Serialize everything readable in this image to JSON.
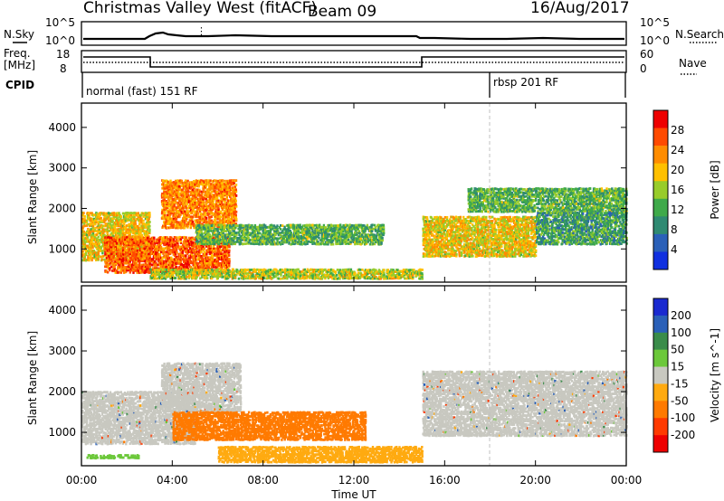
{
  "header": {
    "title": "Christmas Valley West (fitACF)",
    "beam": "Beam 09",
    "date": "16/Aug/2017"
  },
  "noise_panel": {
    "left_label": "N.Sky",
    "right_label": "N.Search",
    "left_ticks": [
      "10^5",
      "10^0"
    ],
    "right_ticks": [
      "10^5",
      "10^0"
    ]
  },
  "freq_panel": {
    "left_label_1": "Freq.",
    "left_label_2": "[MHz]",
    "left_ticks": [
      "18",
      "8"
    ],
    "right_label": "Nave",
    "right_ticks": [
      "60",
      "0"
    ]
  },
  "cpid": {
    "label": "CPID",
    "modes": [
      "normal (fast) 151 RF",
      "rbsp 201 RF"
    ]
  },
  "colors": {
    "power_scale": [
      "#1030e0",
      "#2a60b8",
      "#2f8a72",
      "#3faa4a",
      "#98cc2a",
      "#ffc000",
      "#ff8c00",
      "#ff4a00",
      "#ee0000"
    ],
    "velocity_scale": [
      "#1a2ad0",
      "#2a60b8",
      "#3a8c4a",
      "#6cc83a",
      "#c8c8c0",
      "#ffaa10",
      "#ff7a00",
      "#ff3a00",
      "#ee0000"
    ],
    "ground_scatter": "#c8c8c0"
  },
  "chart_data": [
    {
      "type": "heatmap",
      "name": "power",
      "xlabel": "",
      "ylabel": "Slant Range [km]",
      "xlim": [
        "00:00",
        "24:00"
      ],
      "ylim": [
        180,
        4600
      ],
      "x_ticks": [
        "00:00",
        "04:00",
        "08:00",
        "12:00",
        "16:00",
        "20:00",
        "00:00"
      ],
      "y_ticks": [
        1000,
        2000,
        3000,
        4000
      ],
      "colorbar_label": "Power [dB]",
      "colorbar_ticks": [
        4,
        8,
        12,
        16,
        20,
        24,
        28
      ],
      "grid": false,
      "features": [
        {
          "t0": 0.0,
          "t1": 3.0,
          "r0": 700,
          "r1": 1900,
          "level": 20
        },
        {
          "t0": 1.0,
          "t1": 6.5,
          "r0": 400,
          "r1": 1300,
          "level": 26
        },
        {
          "t0": 3.5,
          "t1": 6.8,
          "r0": 1500,
          "r1": 2700,
          "level": 24
        },
        {
          "t0": 5.0,
          "t1": 13.3,
          "r0": 1100,
          "r1": 1600,
          "level": 14
        },
        {
          "t0": 3.0,
          "t1": 15.0,
          "r0": 250,
          "r1": 500,
          "level": 18
        },
        {
          "t0": 15.0,
          "t1": 20.0,
          "r0": 800,
          "r1": 1800,
          "level": 20
        },
        {
          "t0": 17.0,
          "t1": 24.0,
          "r0": 1900,
          "r1": 2500,
          "level": 14
        },
        {
          "t0": 20.0,
          "t1": 24.0,
          "r0": 1100,
          "r1": 1900,
          "level": 12
        }
      ]
    },
    {
      "type": "heatmap",
      "name": "velocity",
      "xlabel": "Time UT",
      "ylabel": "Slant Range [km]",
      "xlim": [
        "00:00",
        "24:00"
      ],
      "ylim": [
        180,
        4600
      ],
      "x_ticks": [
        "00:00",
        "04:00",
        "08:00",
        "12:00",
        "16:00",
        "20:00",
        "00:00"
      ],
      "y_ticks": [
        1000,
        2000,
        3000,
        4000
      ],
      "colorbar_label": "Velocity [m s^-1]",
      "colorbar_ticks": [
        200,
        100,
        50,
        15,
        -15,
        -50,
        -100,
        -200
      ],
      "grid": false,
      "features": [
        {
          "t0": 0.0,
          "t1": 5.0,
          "r0": 700,
          "r1": 2000,
          "level": 0
        },
        {
          "t0": 3.5,
          "t1": 7.0,
          "r0": 1500,
          "r1": 2700,
          "level": 0
        },
        {
          "t0": 4.0,
          "t1": 12.5,
          "r0": 800,
          "r1": 1500,
          "level": -60
        },
        {
          "t0": 6.0,
          "t1": 15.0,
          "r0": 250,
          "r1": 650,
          "level": -40
        },
        {
          "t0": 15.0,
          "t1": 24.0,
          "r0": 900,
          "r1": 2500,
          "level": 0
        },
        {
          "t0": 0.2,
          "t1": 2.5,
          "r0": 350,
          "r1": 450,
          "level": 30
        }
      ]
    }
  ]
}
